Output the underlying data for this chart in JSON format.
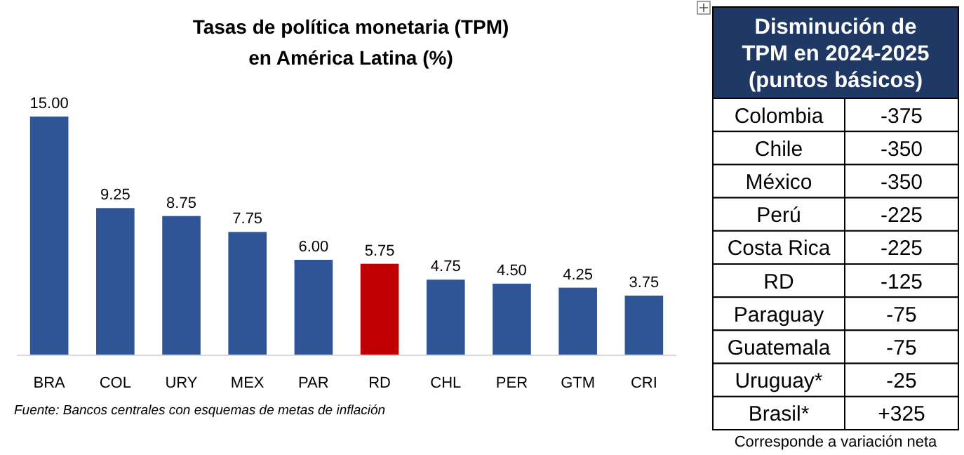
{
  "chart_data": [
    {
      "type": "bar",
      "title": "Tasas de política monetaria (TPM)\nen América Latina (%)",
      "categories": [
        "BRA",
        "COL",
        "URY",
        "MEX",
        "PAR",
        "RD",
        "CHL",
        "PER",
        "GTM",
        "CRI"
      ],
      "values": [
        15.0,
        9.25,
        8.75,
        7.75,
        6.0,
        5.75,
        4.75,
        4.5,
        4.25,
        3.75
      ],
      "value_labels": [
        "15.00",
        "9.25",
        "8.75",
        "7.75",
        "6.00",
        "5.75",
        "4.75",
        "4.50",
        "4.25",
        "3.75"
      ],
      "colors": [
        "#2f5597",
        "#2f5597",
        "#2f5597",
        "#2f5597",
        "#2f5597",
        "#c00000",
        "#2f5597",
        "#2f5597",
        "#2f5597",
        "#2f5597"
      ],
      "annotations": [
        "Fuente: Bancos centrales con esquemas de metas de inflación"
      ]
    },
    {
      "type": "other",
      "title": "Disminución de\nTPM en 2024-2025\n(puntos básicos)",
      "categories": [
        "Colombia",
        "Chile",
        "México",
        "Perú",
        "Costa Rica",
        "RD",
        "Paraguay",
        "Guatemala",
        "Uruguay*",
        "Brasil*"
      ],
      "value_labels": [
        "-375",
        "-350",
        "-350",
        "-225",
        "-225",
        "-125",
        "-75",
        "-75",
        "-25",
        "+325"
      ],
      "annotations": [
        "Corresponde a variación neta"
      ]
    }
  ]
}
